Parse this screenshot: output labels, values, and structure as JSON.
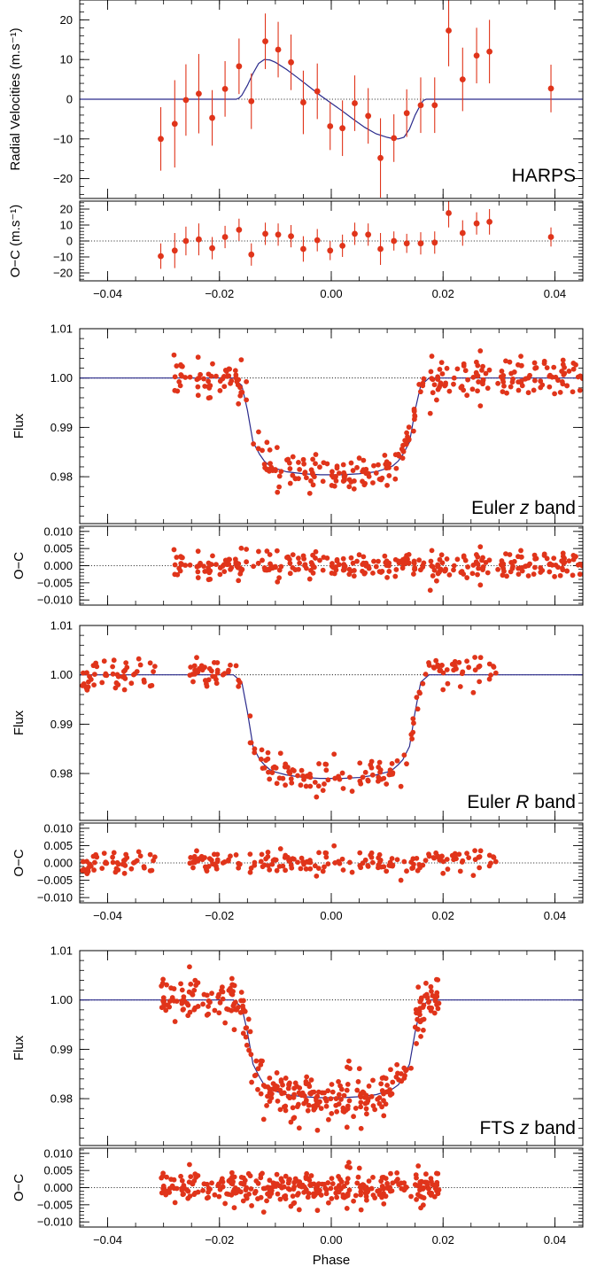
{
  "colors": {
    "model": "#2a2a8c",
    "data": "#e0341a",
    "frame": "#000000",
    "zero_line": "#000000"
  },
  "chart_data": [
    {
      "type": "scatter",
      "label": "HARPS",
      "ylabel": "Radial Velocities (m.s⁻¹)",
      "xlim": [
        -0.045,
        0.045
      ],
      "ylim": [
        -25,
        25
      ],
      "yticks": [
        -20,
        -10,
        0,
        10,
        20
      ],
      "ytick_labels": [
        "−20",
        "−10",
        "0",
        "10",
        "20"
      ],
      "baseline": 0,
      "x": [
        -0.0305,
        -0.028,
        -0.026,
        -0.0237,
        -0.0213,
        -0.019,
        -0.0165,
        -0.0143,
        -0.0118,
        -0.0095,
        -0.0072,
        -0.005,
        -0.0025,
        -0.0002,
        0.002,
        0.0042,
        0.0066,
        0.0088,
        0.0112,
        0.0135,
        0.016,
        0.0185,
        0.021,
        0.0235,
        0.026,
        0.0283,
        0.0393
      ],
      "y": [
        -10,
        -6.2,
        -0.2,
        1.4,
        -4.7,
        2.6,
        8.3,
        -0.5,
        14.6,
        12.5,
        9.3,
        -0.8,
        2.0,
        -6.8,
        -7.3,
        -1.0,
        -4.2,
        -14.8,
        -9.8,
        -3.5,
        -1.5,
        -1.5,
        17.3,
        5.0,
        11.0,
        12.0,
        2.7
      ],
      "y_err": [
        8,
        11,
        9,
        10,
        7,
        7,
        7,
        7,
        7,
        7,
        7,
        8,
        7,
        6,
        7,
        7,
        7,
        10,
        6,
        6,
        7,
        7,
        9,
        8,
        7,
        8,
        6
      ],
      "model": {
        "x": [
          -0.045,
          -0.017,
          -0.0165,
          -0.016,
          -0.015,
          -0.014,
          -0.013,
          -0.012,
          -0.011,
          -0.01,
          -0.008,
          -0.006,
          -0.004,
          -0.002,
          0.0,
          0.002,
          0.004,
          0.006,
          0.008,
          0.01,
          0.011,
          0.012,
          0.013,
          0.014,
          0.015,
          0.016,
          0.0165,
          0.017,
          0.045
        ],
        "y": [
          0,
          0,
          0.3,
          1.0,
          3.5,
          6.5,
          9.0,
          10.0,
          9.9,
          9.3,
          7.5,
          5.4,
          3.2,
          1.0,
          -1.0,
          -3.0,
          -5.1,
          -7.1,
          -8.7,
          -9.6,
          -9.9,
          -10.0,
          -9.6,
          -7.5,
          -4.0,
          -1.3,
          -0.3,
          0,
          0
        ]
      }
    },
    {
      "type": "scatter",
      "ylabel": "O−C (m.s⁻¹)",
      "xlim": [
        -0.045,
        0.045
      ],
      "ylim": [
        -25,
        25
      ],
      "yticks": [
        -20,
        -10,
        0,
        10,
        20
      ],
      "ytick_labels": [
        "−20",
        "−10",
        "0",
        "10",
        "20"
      ],
      "baseline": 0,
      "xticks": [
        -0.04,
        -0.02,
        0.0,
        0.02,
        0.04
      ],
      "xtick_labels": [
        "−0.04",
        "−0.02",
        "0.00",
        "0.02",
        "0.04"
      ],
      "x": [
        -0.0305,
        -0.028,
        -0.026,
        -0.0237,
        -0.0213,
        -0.019,
        -0.0165,
        -0.0143,
        -0.0118,
        -0.0095,
        -0.0072,
        -0.005,
        -0.0025,
        -0.0002,
        0.002,
        0.0042,
        0.0066,
        0.0088,
        0.0112,
        0.0135,
        0.016,
        0.0185,
        0.021,
        0.0235,
        0.026,
        0.0283,
        0.0393
      ],
      "y": [
        -9.5,
        -6,
        0,
        1,
        -4.5,
        2.5,
        7,
        -8.5,
        4.5,
        4,
        3,
        -5,
        0.5,
        -6,
        -3,
        4.5,
        4,
        -5,
        0,
        -1.5,
        -1.5,
        -1,
        17.5,
        5,
        11,
        12,
        2.5
      ],
      "y_err": [
        8,
        11,
        9,
        10,
        7,
        7,
        7,
        7,
        7,
        7,
        7,
        8,
        7,
        6,
        7,
        7,
        7,
        10,
        6,
        6,
        7,
        7,
        9,
        8,
        7,
        8,
        6
      ]
    },
    {
      "type": "scatter",
      "label_parts": [
        "Euler ",
        "z",
        " band"
      ],
      "ylabel": "Flux",
      "xlim": [
        -0.045,
        0.045
      ],
      "ylim": [
        0.9705,
        1.01
      ],
      "yticks": [
        0.98,
        0.99,
        1.0,
        1.01
      ],
      "ytick_labels": [
        "0.98",
        "0.99",
        "1.00",
        "1.01"
      ],
      "baseline": 1.0,
      "model": {
        "x": [
          -0.045,
          -0.0175,
          -0.016,
          -0.015,
          -0.014,
          -0.0128,
          -0.012,
          -0.011,
          -0.01,
          -0.008,
          -0.005,
          -0.002,
          0.0,
          0.002,
          0.005,
          0.008,
          0.01,
          0.011,
          0.012,
          0.0128,
          0.014,
          0.015,
          0.016,
          0.0175,
          0.045
        ],
        "y": [
          1.0,
          1.0,
          0.9985,
          0.9935,
          0.987,
          0.9845,
          0.9832,
          0.9822,
          0.9817,
          0.981,
          0.9806,
          0.9804,
          0.9804,
          0.9804,
          0.9806,
          0.981,
          0.9817,
          0.9822,
          0.9832,
          0.9845,
          0.987,
          0.9935,
          0.9985,
          1.0,
          1.0
        ]
      },
      "depth": 0.0196,
      "x_range": [
        -0.0285,
        0.045
      ],
      "count": 320,
      "scatter_sd": 0.0019,
      "seed": 11
    },
    {
      "type": "scatter",
      "ylabel": "O−C",
      "xlim": [
        -0.045,
        0.045
      ],
      "ylim": [
        -0.0115,
        0.0115
      ],
      "yticks": [
        -0.01,
        -0.005,
        0.0,
        0.005,
        0.01
      ],
      "ytick_labels": [
        "−0.010",
        "−0.005",
        "0.000",
        "0.005",
        "0.010"
      ],
      "baseline": 0,
      "x_range": [
        -0.0285,
        0.045
      ],
      "count": 320,
      "scatter_sd": 0.0019,
      "seed": 11
    },
    {
      "type": "scatter",
      "label_parts": [
        "Euler ",
        "R",
        " band"
      ],
      "ylabel": "Flux",
      "xlim": [
        -0.045,
        0.045
      ],
      "ylim": [
        0.9705,
        1.01
      ],
      "yticks": [
        0.98,
        0.99,
        1.0,
        1.01
      ],
      "ytick_labels": [
        "0.98",
        "0.99",
        "1.00",
        "1.01"
      ],
      "baseline": 1.0,
      "model": {
        "x": [
          -0.045,
          -0.0175,
          -0.016,
          -0.015,
          -0.014,
          -0.0128,
          -0.012,
          -0.011,
          -0.01,
          -0.008,
          -0.005,
          -0.002,
          0.0,
          0.002,
          0.005,
          0.008,
          0.01,
          0.011,
          0.012,
          0.0128,
          0.014,
          0.015,
          0.016,
          0.0175,
          0.045
        ],
        "y": [
          1.0,
          1.0,
          0.9985,
          0.9925,
          0.9855,
          0.9828,
          0.9818,
          0.9808,
          0.9803,
          0.9797,
          0.9792,
          0.979,
          0.979,
          0.979,
          0.9792,
          0.9797,
          0.9803,
          0.9808,
          0.9818,
          0.9828,
          0.9855,
          0.9925,
          0.9985,
          1.0,
          1.0
        ]
      },
      "depth": 0.021,
      "segments": [
        [
          -0.045,
          -0.0315
        ],
        [
          -0.026,
          0.0295
        ]
      ],
      "count": 230,
      "scatter_sd": 0.0017,
      "seed": 23
    },
    {
      "type": "scatter",
      "ylabel": "O−C",
      "xlim": [
        -0.045,
        0.045
      ],
      "ylim": [
        -0.0115,
        0.0115
      ],
      "yticks": [
        -0.01,
        -0.005,
        0.0,
        0.005,
        0.01
      ],
      "ytick_labels": [
        "−0.010",
        "−0.005",
        "0.000",
        "0.005",
        "0.010"
      ],
      "baseline": 0,
      "xticks": [
        -0.04,
        -0.02,
        0.0,
        0.02,
        0.04
      ],
      "xtick_labels": [
        "−0.04",
        "−0.02",
        "0.00",
        "0.02",
        "0.04"
      ],
      "segments": [
        [
          -0.045,
          -0.0315
        ],
        [
          -0.026,
          0.0295
        ]
      ],
      "count": 230,
      "scatter_sd": 0.0017,
      "seed": 23
    },
    {
      "type": "scatter",
      "label_parts": [
        "FTS ",
        "z",
        " band"
      ],
      "ylabel": "Flux",
      "xlim": [
        -0.045,
        0.045
      ],
      "ylim": [
        0.9705,
        1.01
      ],
      "yticks": [
        0.98,
        0.99,
        1.0,
        1.01
      ],
      "ytick_labels": [
        "0.98",
        "0.99",
        "1.00",
        "1.01"
      ],
      "baseline": 1.0,
      "model": {
        "x": [
          -0.045,
          -0.0175,
          -0.016,
          -0.015,
          -0.014,
          -0.0128,
          -0.012,
          -0.011,
          -0.01,
          -0.008,
          -0.005,
          -0.002,
          0.0,
          0.002,
          0.005,
          0.008,
          0.01,
          0.011,
          0.012,
          0.0128,
          0.014,
          0.015,
          0.016,
          0.0175,
          0.045
        ],
        "y": [
          1.0,
          1.0,
          0.9985,
          0.9935,
          0.987,
          0.9843,
          0.9828,
          0.982,
          0.9815,
          0.9808,
          0.9804,
          0.9802,
          0.9802,
          0.9802,
          0.9804,
          0.9808,
          0.9815,
          0.982,
          0.9828,
          0.9843,
          0.987,
          0.9935,
          0.9985,
          1.0,
          1.0
        ]
      },
      "depth": 0.0198,
      "x_range": [
        -0.0305,
        0.0193
      ],
      "count": 330,
      "scatter_sd": 0.0024,
      "seed": 37
    },
    {
      "type": "scatter",
      "ylabel": "O−C",
      "xlabel": "Phase",
      "xlim": [
        -0.045,
        0.045
      ],
      "ylim": [
        -0.0115,
        0.0115
      ],
      "yticks": [
        -0.01,
        -0.005,
        0.0,
        0.005,
        0.01
      ],
      "ytick_labels": [
        "−0.010",
        "−0.005",
        "0.000",
        "0.005",
        "0.010"
      ],
      "baseline": 0,
      "xticks": [
        -0.04,
        -0.02,
        0.0,
        0.02,
        0.04
      ],
      "xtick_labels": [
        "−0.04",
        "−0.02",
        "0.00",
        "0.02",
        "0.04"
      ],
      "x_range": [
        -0.0305,
        0.0193
      ],
      "count": 330,
      "scatter_sd": 0.0024,
      "seed": 37
    }
  ]
}
